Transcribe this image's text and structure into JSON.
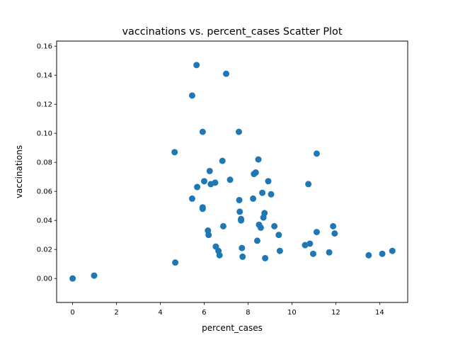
{
  "chart_data": {
    "type": "scatter",
    "title": "vaccinations vs. percent_cases Scatter Plot",
    "xlabel": "percent_cases",
    "ylabel": "vaccinations",
    "xlim": [
      -0.73,
      15.28
    ],
    "ylim": [
      -0.0165,
      0.1635
    ],
    "xticks": [
      0,
      2,
      4,
      6,
      8,
      10,
      12,
      14
    ],
    "xtick_labels": [
      "0",
      "2",
      "4",
      "6",
      "8",
      "10",
      "12",
      "14"
    ],
    "yticks": [
      0.0,
      0.02,
      0.04,
      0.06,
      0.08,
      0.1,
      0.12,
      0.14,
      0.16
    ],
    "ytick_labels": [
      "0.00",
      "0.02",
      "0.04",
      "0.06",
      "0.08",
      "0.10",
      "0.12",
      "0.14",
      "0.16"
    ],
    "grid": false,
    "marker_color": "#1f77b4",
    "series": [
      {
        "x": [
          0.0,
          0.98,
          4.65,
          4.68,
          5.45,
          5.45,
          5.65,
          5.68,
          5.93,
          5.93,
          5.93,
          6.0,
          6.17,
          6.2,
          6.25,
          6.3,
          6.5,
          6.53,
          6.65,
          6.7,
          6.83,
          6.87,
          7.0,
          7.18,
          7.58,
          7.6,
          7.62,
          7.68,
          7.68,
          7.72,
          7.75,
          8.23,
          8.27,
          8.35,
          8.42,
          8.47,
          8.5,
          8.58,
          8.65,
          8.7,
          8.75,
          8.78,
          8.92,
          9.05,
          9.2,
          9.4,
          9.45,
          10.6,
          10.75,
          10.82,
          10.97,
          11.13,
          11.13,
          11.7,
          11.88,
          11.95,
          13.5,
          14.12,
          14.58
        ],
        "y": [
          0.0,
          0.002,
          0.087,
          0.011,
          0.126,
          0.055,
          0.147,
          0.063,
          0.101,
          0.049,
          0.048,
          0.067,
          0.033,
          0.03,
          0.074,
          0.065,
          0.066,
          0.022,
          0.019,
          0.016,
          0.081,
          0.036,
          0.141,
          0.068,
          0.101,
          0.054,
          0.046,
          0.041,
          0.04,
          0.021,
          0.015,
          0.055,
          0.072,
          0.073,
          0.026,
          0.082,
          0.037,
          0.035,
          0.059,
          0.042,
          0.045,
          0.014,
          0.067,
          0.058,
          0.036,
          0.03,
          0.019,
          0.023,
          0.065,
          0.024,
          0.017,
          0.086,
          0.032,
          0.018,
          0.036,
          0.031,
          0.016,
          0.017,
          0.019
        ]
      }
    ]
  }
}
